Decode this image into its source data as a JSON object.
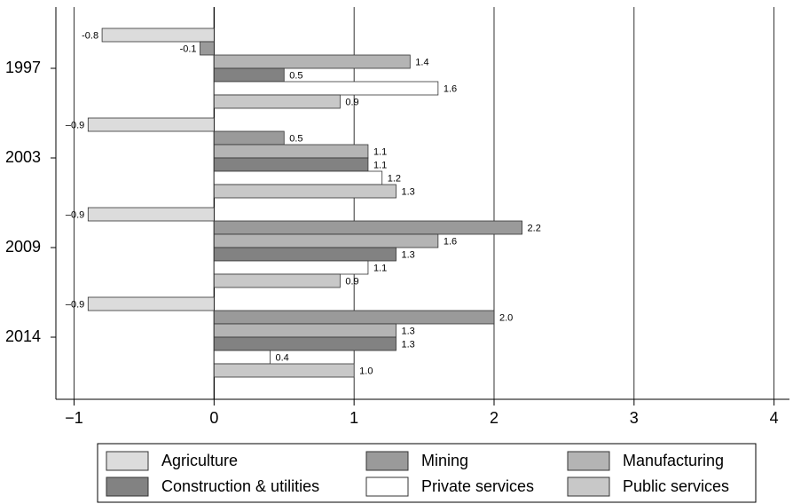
{
  "chart_data": {
    "type": "hbar",
    "categories": [
      "1997",
      "2003",
      "2009",
      "2014"
    ],
    "series": [
      {
        "name": "Agriculture",
        "color": "#dcdcdc",
        "values": [
          -0.8,
          -0.9,
          -0.9,
          -0.9
        ],
        "value_labels": [
          "-0.8",
          "–0.9",
          "–0.9",
          "–0.9"
        ]
      },
      {
        "name": "Mining",
        "color": "#9a9a9a",
        "values": [
          -0.1,
          0.5,
          2.2,
          2.0
        ],
        "value_labels": [
          "-0.1",
          "0.5",
          "2.2",
          "2.0"
        ]
      },
      {
        "name": "Manufacturing",
        "color": "#b4b4b4",
        "values": [
          1.4,
          1.1,
          1.6,
          1.3
        ],
        "value_labels": [
          "1.4",
          "1.1",
          "1.6",
          "1.3"
        ]
      },
      {
        "name": "Construction & utilities",
        "color": "#828282",
        "values": [
          0.5,
          1.1,
          1.3,
          1.3
        ],
        "value_labels": [
          "0.5",
          "1.1",
          "1.3",
          "1.3"
        ]
      },
      {
        "name": "Private services",
        "color": "#ffffff",
        "values": [
          1.6,
          1.2,
          1.1,
          0.4
        ],
        "value_labels": [
          "1.6",
          "1.2",
          "1.1",
          "0.4"
        ]
      },
      {
        "name": "Public services",
        "color": "#c8c8c8",
        "values": [
          0.9,
          1.3,
          0.9,
          1.0
        ],
        "value_labels": [
          "0.9",
          "1.3",
          "0.9",
          "1.0"
        ]
      }
    ],
    "xlim": [
      -1.13,
      4.11
    ],
    "xticks": [
      {
        "value": -1,
        "label": "−1"
      },
      0,
      1,
      2,
      3,
      4
    ],
    "grid": true
  }
}
